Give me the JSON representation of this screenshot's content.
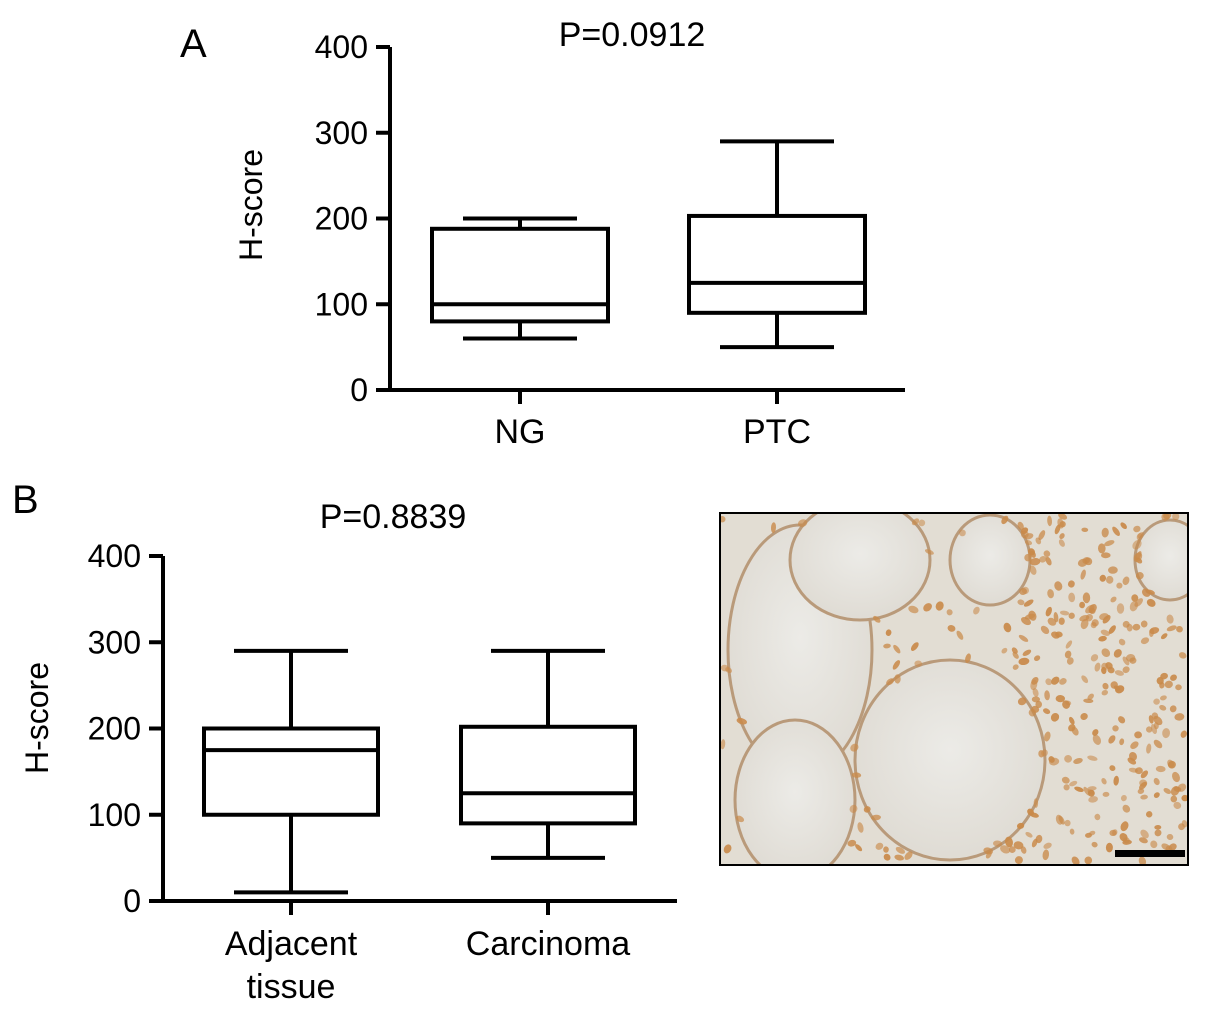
{
  "panels": {
    "A": {
      "letter": "A",
      "pvalue": "P=0.0912"
    },
    "B": {
      "letter": "B",
      "pvalue": "P=0.8839"
    }
  },
  "chart_data": [
    {
      "type": "box",
      "panel": "A",
      "title": "",
      "subtitle": "P=0.0912",
      "ylabel": "H-score",
      "ylim": [
        0,
        400
      ],
      "yticks": [
        0,
        100,
        200,
        300,
        400
      ],
      "categories": [
        "NG",
        "PTC"
      ],
      "boxes": [
        {
          "category": "NG",
          "min": 60,
          "q1": 80,
          "median": 100,
          "q3": 188,
          "max": 200
        },
        {
          "category": "PTC",
          "min": 50,
          "q1": 90,
          "median": 125,
          "q3": 203,
          "max": 290
        }
      ]
    },
    {
      "type": "box",
      "panel": "B",
      "title": "",
      "subtitle": "P=0.8839",
      "ylabel": "H-score",
      "ylim": [
        0,
        400
      ],
      "yticks": [
        0,
        100,
        200,
        300,
        400
      ],
      "categories": [
        [
          "Adjacent",
          "tissue"
        ],
        [
          "Carcinoma"
        ]
      ],
      "boxes": [
        {
          "category": "Adjacent tissue",
          "min": 10,
          "q1": 100,
          "median": 175,
          "q3": 200,
          "max": 290
        },
        {
          "category": "Carcinoma",
          "min": 50,
          "q1": 90,
          "median": 125,
          "q3": 202,
          "max": 290
        }
      ]
    }
  ],
  "micrograph": {
    "icon": "ihc-micrograph",
    "background": "#e7e3dc",
    "stain": "#c98a4a",
    "scale_bar": "#000000"
  }
}
